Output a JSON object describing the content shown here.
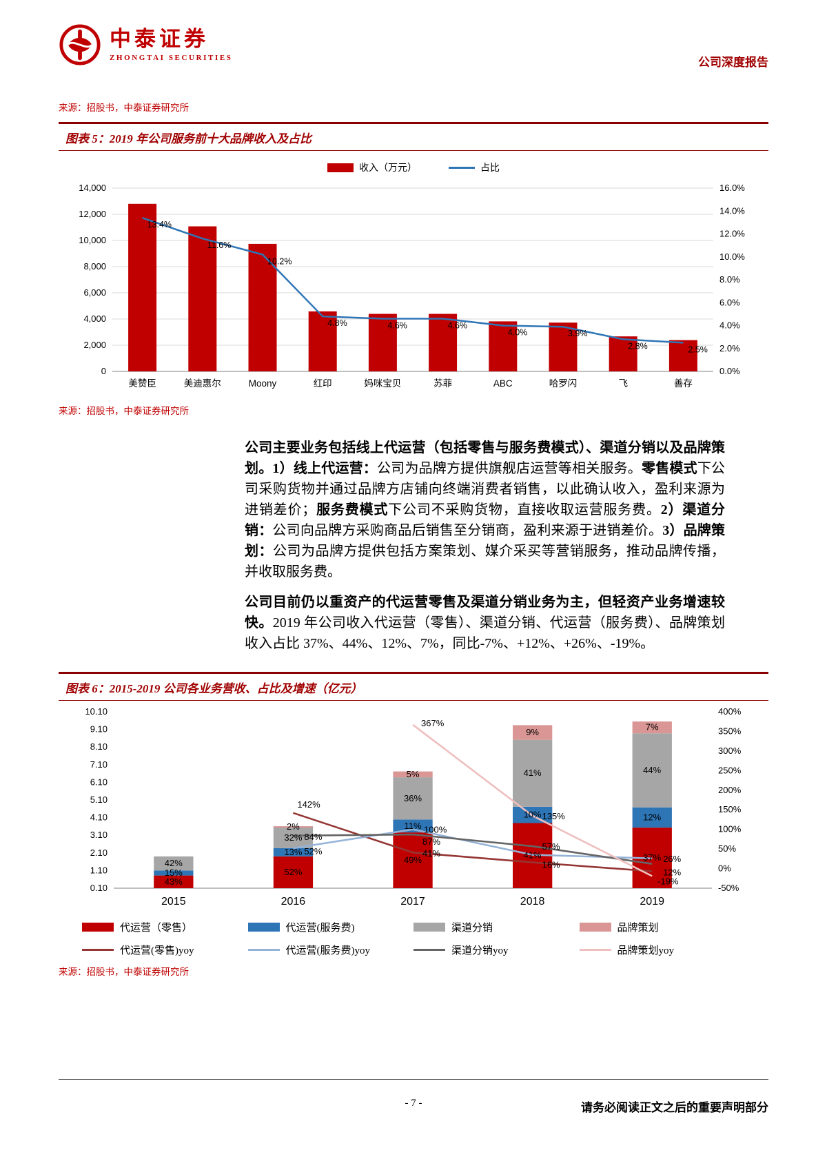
{
  "header": {
    "logo_cn": "中泰证券",
    "logo_en": "ZHONGTAI SECURITIES",
    "report_type": "公司深度报告"
  },
  "source_note": "来源：招股书，中泰证券研究所",
  "figure5": {
    "title": "图表 5：2019 年公司服务前十大品牌收入及占比"
  },
  "figure6": {
    "title": "图表 6：2015-2019 公司各业务营收、占比及增速（亿元）"
  },
  "paragraphs": [
    [
      {
        "text": "公司主要业务包括线上代运营（包括零售与服务费模式）、渠道分销以及品牌策划。1）线上代运营：",
        "bold": true
      },
      {
        "text": "公司为品牌方提供旗舰店运营等相关服务。",
        "bold": false
      },
      {
        "text": "零售模式",
        "bold": true
      },
      {
        "text": "下公司采购货物并通过品牌方店铺向终端消费者销售，以此确认收入，盈利来源为进销差价；",
        "bold": false
      },
      {
        "text": "服务费模式",
        "bold": true
      },
      {
        "text": "下公司不采购货物，直接收取运营服务费。",
        "bold": false
      },
      {
        "text": "2）渠道分销：",
        "bold": true
      },
      {
        "text": "公司向品牌方采购商品后销售至分销商，盈利来源于进销差价。",
        "bold": false
      },
      {
        "text": "3）品牌策划：",
        "bold": true
      },
      {
        "text": "公司为品牌方提供包括方案策划、媒介采买等营销服务，推动品牌传播，并收取服务费。",
        "bold": false
      }
    ],
    [
      {
        "text": "公司目前仍以重资产的代运营零售及渠道分销业务为主，但轻资产业务增速较快。",
        "bold": true
      },
      {
        "text": "2019 年公司收入代运营（零售）、渠道分销、代运营（服务费）、品牌策划收入占比 37%、44%、12%、7%，同比-7%、+12%、+26%、-19%。",
        "bold": false
      }
    ]
  ],
  "footer": {
    "page": "- 7 -",
    "disclaimer": "请务必阅读正文之后的重要声明部分"
  },
  "chart_data": [
    {
      "type": "bar",
      "title": "2019 年公司服务前十大品牌收入及占比",
      "categories": [
        "美赞臣",
        "美迪惠尔",
        "Moony",
        "红印",
        "妈咪宝贝",
        "苏菲",
        "ABC",
        "哈罗闪",
        "飞",
        "善存"
      ],
      "series": [
        {
          "name": "收入（万元）",
          "type": "bar",
          "color": "#C00000",
          "values": [
            12800,
            11080,
            9740,
            4585,
            4395,
            4395,
            3820,
            3725,
            2675,
            2390
          ]
        },
        {
          "name": "占比",
          "type": "line",
          "color": "#2E75B6",
          "values": [
            13.4,
            11.6,
            10.2,
            4.8,
            4.6,
            4.6,
            4.0,
            3.9,
            2.8,
            2.5
          ],
          "labels": [
            "13.4%",
            "11.6%",
            "10.2%",
            "4.8%",
            "4.6%",
            "4.6%",
            "4.0%",
            "3.9%",
            "2.8%",
            "2.5%"
          ]
        }
      ],
      "left_axis": {
        "min": 0,
        "max": 14000,
        "step": 2000
      },
      "right_axis": {
        "min": 0,
        "max": 16,
        "step": 2
      },
      "grid": true,
      "legend_position": "top"
    },
    {
      "type": "stacked-bar-line",
      "title": "2015-2019 公司各业务营收、占比及增速（亿元）",
      "categories": [
        "2015",
        "2016",
        "2017",
        "2018",
        "2019"
      ],
      "totals_yi_yuan": [
        1.9,
        3.65,
        6.65,
        9.25,
        9.55
      ],
      "stack_series": [
        {
          "name": "代运营（零售）",
          "color": "#C00000",
          "shares_pct": [
            43,
            52,
            49,
            41,
            37
          ],
          "labels": [
            "43%",
            "52%",
            "49%",
            "41%",
            "37%"
          ]
        },
        {
          "name": "代运营(服务费)",
          "color": "#2E75B6",
          "shares_pct": [
            15,
            13,
            11,
            10,
            12
          ],
          "labels": [
            "15%",
            "13%",
            "11%",
            "10%",
            "12%"
          ]
        },
        {
          "name": "渠道分销",
          "color": "#A6A6A6",
          "shares_pct": [
            42,
            32,
            36,
            41,
            44
          ],
          "labels": [
            "42%",
            "32%",
            "36%",
            "41%",
            "44%"
          ]
        },
        {
          "name": "品牌策划",
          "color": "#D99694",
          "shares_pct": [
            0,
            2,
            5,
            9,
            7
          ],
          "labels": [
            "",
            "2%",
            "5%",
            "9%",
            "7%"
          ]
        }
      ],
      "line_series": [
        {
          "name": "代运营(零售)yoy",
          "color": "#943634",
          "values": [
            null,
            142,
            41,
            16,
            -7
          ],
          "labels": [
            "",
            "142%",
            "41%",
            "16%",
            ""
          ]
        },
        {
          "name": "代运营(服务费)yoy",
          "color": "#95B3D7",
          "values": [
            null,
            52,
            100,
            35,
            26
          ],
          "labels": [
            "",
            "52%",
            "100%",
            "",
            "26%"
          ]
        },
        {
          "name": "渠道分销yoy",
          "color": "#646464",
          "values": [
            null,
            84,
            87,
            57,
            12
          ],
          "labels": [
            "",
            "84%",
            "87%",
            "57%",
            "12%"
          ]
        },
        {
          "name": "品牌策划yoy",
          "color": "#EFBFBF",
          "values": [
            null,
            null,
            367,
            135,
            -19
          ],
          "labels": [
            "",
            "",
            "367%",
            "135%",
            "-19%"
          ]
        }
      ],
      "left_axis": {
        "min": 0.1,
        "max": 10.1,
        "step": 1.0
      },
      "right_axis": {
        "min": -50,
        "max": 400,
        "step": 50
      },
      "grid": false,
      "legend_position": "bottom"
    }
  ]
}
